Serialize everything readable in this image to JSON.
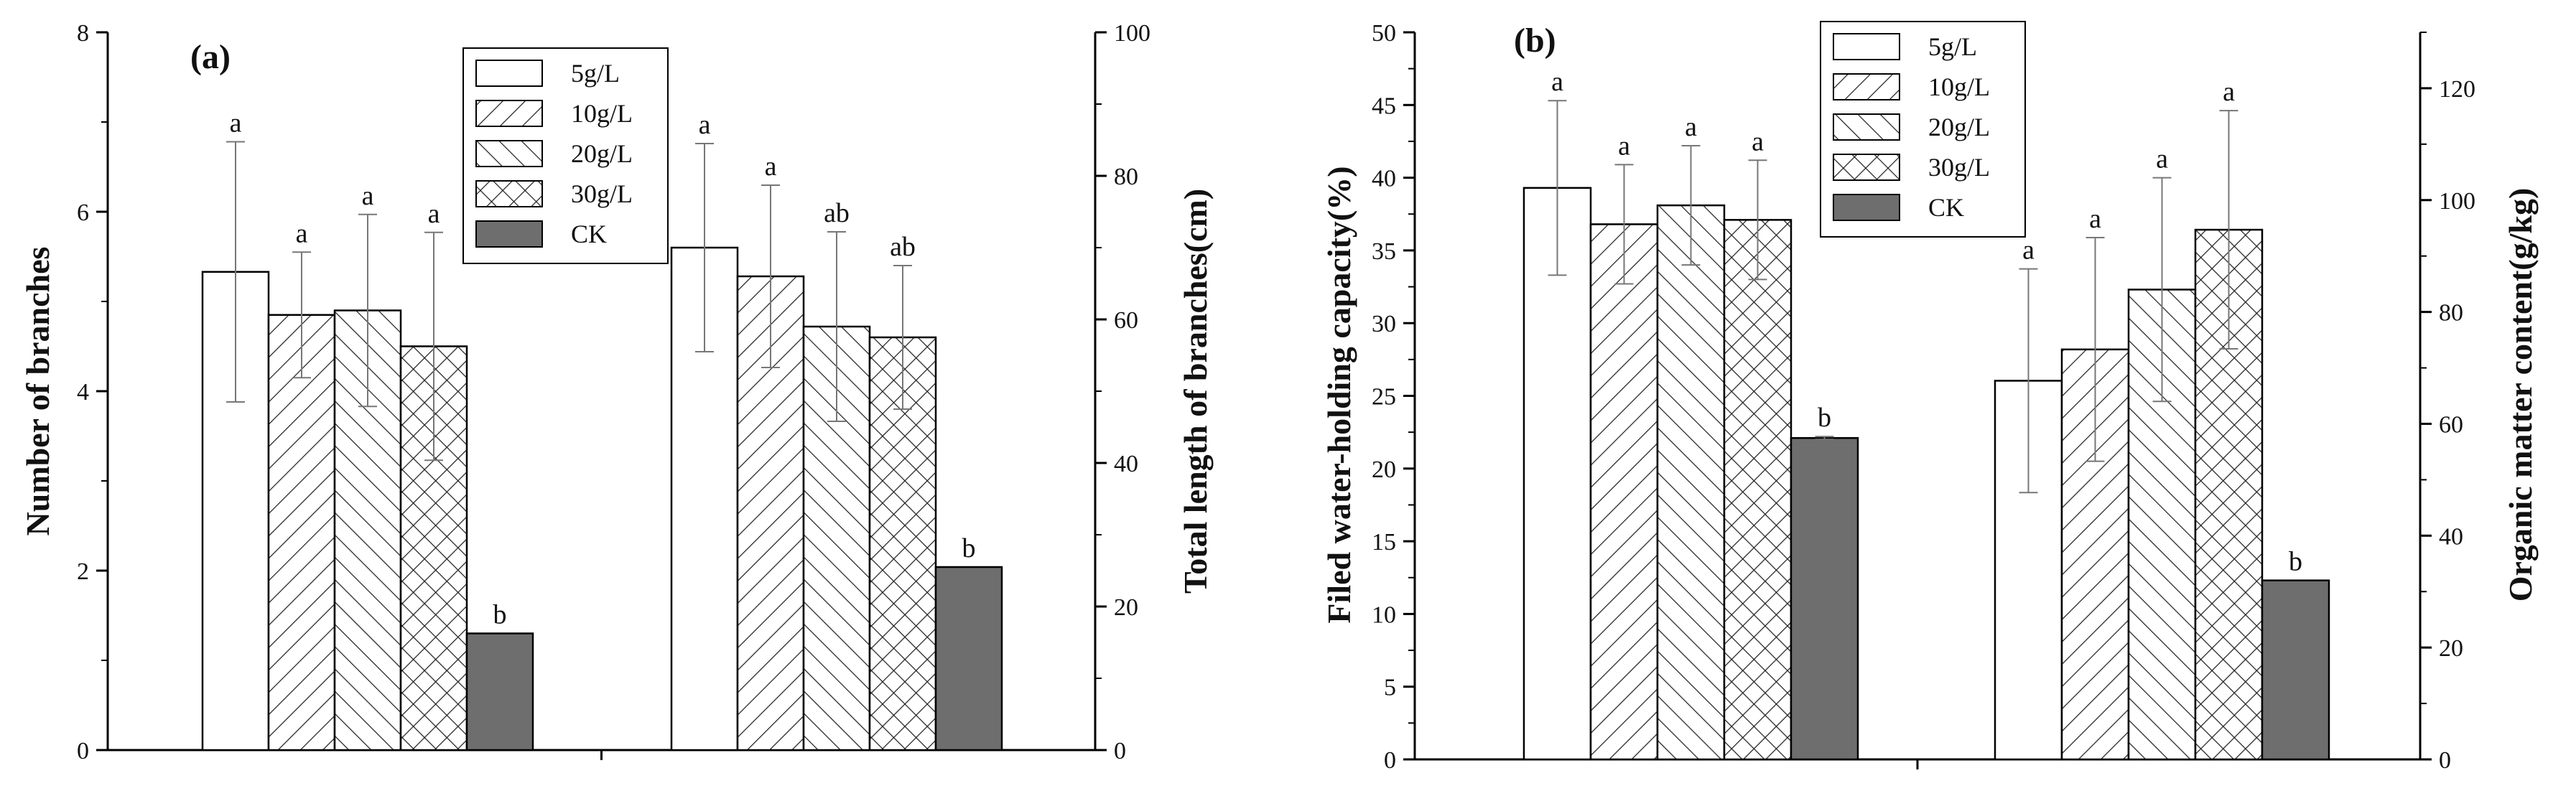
{
  "chart_data": [
    {
      "panel_label": "(a)",
      "type": "bar",
      "legend_position": "top-center",
      "legend": [
        "5g/L",
        "10g/L",
        "20g/L",
        "30g/L",
        "CK"
      ],
      "groups": [
        {
          "axis": "left",
          "values": [
            5.33,
            4.85,
            4.9,
            4.5,
            1.3
          ],
          "errors": [
            1.45,
            0.7,
            1.07,
            1.27,
            0
          ],
          "labels": [
            "a",
            "a",
            "a",
            "a",
            "b"
          ]
        },
        {
          "axis": "right",
          "values": [
            70.0,
            66.0,
            59.0,
            57.5,
            25.5
          ],
          "errors": [
            14.5,
            12.7,
            13.2,
            10.0,
            0
          ],
          "labels": [
            "a",
            "a",
            "ab",
            "ab",
            "b"
          ]
        }
      ],
      "left_axis": {
        "label": "Number of branches",
        "min": 0,
        "max": 8,
        "ticks": [
          "0",
          "2",
          "4",
          "6",
          "8"
        ]
      },
      "right_axis": {
        "label": "Total length of branches(cm)",
        "min": 0,
        "max": 100,
        "ticks": [
          "0",
          "20",
          "40",
          "60",
          "80",
          "100"
        ]
      },
      "xlabel": ""
    },
    {
      "panel_label": "(b)",
      "type": "bar",
      "legend_position": "top-center",
      "legend": [
        "5g/L",
        "10g/L",
        "20g/L",
        "30g/L",
        "CK"
      ],
      "groups": [
        {
          "axis": "left",
          "values": [
            39.3,
            36.8,
            38.1,
            37.1,
            22.1
          ],
          "errors": [
            6.0,
            4.1,
            4.1,
            4.1,
            0.1
          ],
          "labels": [
            "a",
            "a",
            "a",
            "a",
            "b"
          ]
        },
        {
          "axis": "right",
          "values": [
            67.7,
            73.3,
            84.0,
            94.7,
            32.0
          ],
          "errors": [
            20.0,
            20.0,
            20.0,
            21.3,
            0
          ],
          "labels": [
            "a",
            "a",
            "a",
            "a",
            "b"
          ]
        }
      ],
      "left_axis": {
        "label": "Filed water-holding capacity(%)",
        "min": 0,
        "max": 50,
        "ticks": [
          "0",
          "5",
          "10",
          "15",
          "20",
          "25",
          "30",
          "35",
          "40",
          "45",
          "50"
        ]
      },
      "right_axis": {
        "label": "Organic matter content(g/kg)",
        "min": 0,
        "max": 130,
        "ticks": [
          "0",
          "20",
          "40",
          "60",
          "80",
          "100",
          "120"
        ]
      },
      "xlabel": ""
    }
  ]
}
